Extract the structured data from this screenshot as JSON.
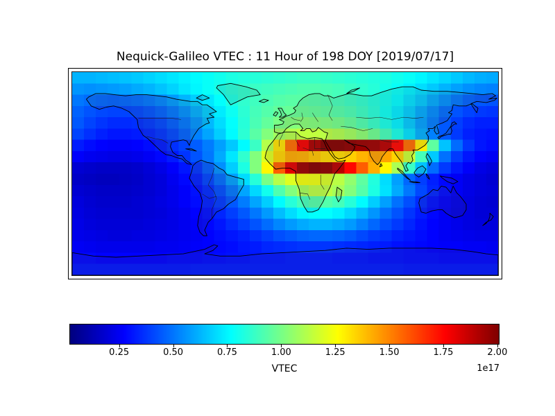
{
  "title": "Nequick-Galileo VTEC : 11 Hour of 198 DOY [2019/07/17]",
  "chart_data": {
    "type": "heatmap",
    "title": "Nequick-Galileo VTEC : 11 Hour of 198 DOY [2019/07/17]",
    "model": "Nequick-Galileo",
    "quantity": "VTEC",
    "hour": 11,
    "doy": 198,
    "date": "2019/07/17",
    "projection": "equirectangular-world-map",
    "lon_range": [
      -180,
      180
    ],
    "lat_range": [
      -90,
      90
    ],
    "grid": {
      "lon_cells": 36,
      "lat_cells": 18,
      "row_order": "north-to-south",
      "units": "1e17 el/m^2"
    },
    "colormap": "jet",
    "colorbar": {
      "orientation": "horizontal",
      "label": "VTEC",
      "offset_text": "1e17",
      "vmin": 0.02,
      "vmax": 2.01,
      "ticks": [
        0.25,
        0.5,
        0.75,
        1.0,
        1.25,
        1.5,
        1.75,
        2.0
      ],
      "tick_labels": [
        "0.25",
        "0.50",
        "0.75",
        "1.00",
        "1.25",
        "1.50",
        "1.75",
        "2.00"
      ]
    },
    "values_1e17": [
      [
        0.62,
        0.62,
        0.63,
        0.64,
        0.65,
        0.66,
        0.68,
        0.7,
        0.72,
        0.74,
        0.76,
        0.78,
        0.8,
        0.82,
        0.83,
        0.84,
        0.85,
        0.86,
        0.87,
        0.88,
        0.88,
        0.87,
        0.86,
        0.85,
        0.84,
        0.83,
        0.82,
        0.8,
        0.78,
        0.75,
        0.72,
        0.69,
        0.66,
        0.63,
        0.61,
        0.6
      ],
      [
        0.56,
        0.55,
        0.56,
        0.57,
        0.58,
        0.6,
        0.62,
        0.65,
        0.68,
        0.72,
        0.75,
        0.78,
        0.81,
        0.84,
        0.86,
        0.88,
        0.89,
        0.9,
        0.91,
        0.92,
        0.92,
        0.91,
        0.9,
        0.88,
        0.86,
        0.84,
        0.81,
        0.78,
        0.74,
        0.7,
        0.66,
        0.62,
        0.58,
        0.55,
        0.53,
        0.52
      ],
      [
        0.5,
        0.48,
        0.47,
        0.46,
        0.47,
        0.48,
        0.5,
        0.53,
        0.57,
        0.62,
        0.67,
        0.72,
        0.77,
        0.82,
        0.86,
        0.89,
        0.91,
        0.93,
        0.94,
        0.94,
        0.93,
        0.92,
        0.9,
        0.88,
        0.86,
        0.83,
        0.8,
        0.76,
        0.71,
        0.66,
        0.6,
        0.55,
        0.5,
        0.46,
        0.44,
        0.43
      ],
      [
        0.46,
        0.43,
        0.41,
        0.4,
        0.4,
        0.41,
        0.43,
        0.46,
        0.5,
        0.55,
        0.61,
        0.67,
        0.73,
        0.79,
        0.85,
        0.9,
        0.93,
        0.96,
        0.97,
        0.97,
        0.96,
        0.95,
        0.93,
        0.91,
        0.88,
        0.84,
        0.79,
        0.73,
        0.67,
        0.6,
        0.54,
        0.48,
        0.43,
        0.4,
        0.38,
        0.37
      ],
      [
        0.44,
        0.4,
        0.37,
        0.35,
        0.35,
        0.36,
        0.38,
        0.41,
        0.45,
        0.5,
        0.56,
        0.63,
        0.7,
        0.77,
        0.84,
        0.91,
        0.96,
        1.0,
        1.02,
        1.03,
        1.02,
        1.01,
        0.99,
        0.96,
        0.92,
        0.87,
        0.81,
        0.74,
        0.66,
        0.58,
        0.51,
        0.44,
        0.39,
        0.35,
        0.33,
        0.33
      ],
      [
        0.4,
        0.36,
        0.33,
        0.31,
        0.31,
        0.32,
        0.34,
        0.37,
        0.41,
        0.46,
        0.52,
        0.59,
        0.67,
        0.76,
        0.85,
        0.94,
        1.02,
        1.08,
        1.12,
        1.14,
        1.14,
        1.13,
        1.11,
        1.08,
        1.04,
        0.98,
        0.9,
        0.81,
        0.71,
        0.61,
        0.52,
        0.44,
        0.38,
        0.33,
        0.31,
        0.3
      ],
      [
        0.32,
        0.29,
        0.27,
        0.26,
        0.26,
        0.27,
        0.29,
        0.32,
        0.36,
        0.4,
        0.45,
        0.51,
        0.58,
        0.66,
        0.76,
        0.88,
        1.12,
        1.32,
        1.55,
        1.78,
        1.93,
        2.0,
        2.0,
        1.98,
        1.96,
        1.95,
        1.9,
        1.75,
        1.55,
        1.3,
        0.95,
        0.65,
        0.48,
        0.37,
        0.31,
        0.29
      ],
      [
        0.26,
        0.24,
        0.23,
        0.22,
        0.22,
        0.23,
        0.25,
        0.28,
        0.32,
        0.37,
        0.43,
        0.5,
        0.6,
        0.72,
        0.86,
        1.02,
        1.2,
        1.35,
        1.43,
        1.42,
        1.38,
        1.34,
        1.33,
        1.36,
        1.41,
        1.45,
        1.44,
        1.35,
        1.16,
        0.9,
        0.66,
        0.49,
        0.38,
        0.31,
        0.27,
        0.25
      ],
      [
        0.18,
        0.17,
        0.16,
        0.16,
        0.16,
        0.17,
        0.19,
        0.22,
        0.26,
        0.31,
        0.37,
        0.45,
        0.55,
        0.67,
        0.82,
        1.02,
        1.28,
        1.58,
        1.82,
        1.96,
        2.0,
        1.98,
        1.9,
        1.75,
        1.58,
        1.42,
        1.28,
        1.1,
        0.88,
        0.65,
        0.48,
        0.38,
        0.31,
        0.26,
        0.22,
        0.2
      ],
      [
        0.16,
        0.15,
        0.14,
        0.14,
        0.15,
        0.16,
        0.18,
        0.2,
        0.24,
        0.28,
        0.33,
        0.4,
        0.48,
        0.58,
        0.7,
        0.84,
        1.0,
        1.12,
        1.2,
        1.24,
        1.23,
        1.19,
        1.13,
        1.05,
        0.95,
        0.83,
        0.7,
        0.58,
        0.47,
        0.39,
        0.33,
        0.28,
        0.25,
        0.22,
        0.2,
        0.18
      ],
      [
        0.18,
        0.17,
        0.16,
        0.16,
        0.16,
        0.17,
        0.18,
        0.2,
        0.23,
        0.26,
        0.3,
        0.35,
        0.42,
        0.5,
        0.59,
        0.69,
        0.8,
        0.92,
        1.02,
        1.09,
        1.13,
        1.13,
        1.09,
        1.02,
        0.93,
        0.82,
        0.71,
        0.6,
        0.5,
        0.41,
        0.34,
        0.29,
        0.25,
        0.22,
        0.2,
        0.19
      ],
      [
        0.2,
        0.18,
        0.17,
        0.17,
        0.17,
        0.18,
        0.19,
        0.21,
        0.23,
        0.26,
        0.29,
        0.33,
        0.38,
        0.44,
        0.51,
        0.59,
        0.67,
        0.76,
        0.84,
        0.9,
        0.93,
        0.93,
        0.9,
        0.84,
        0.76,
        0.67,
        0.58,
        0.49,
        0.42,
        0.35,
        0.3,
        0.26,
        0.23,
        0.21,
        0.19,
        0.18
      ],
      [
        0.21,
        0.19,
        0.18,
        0.18,
        0.18,
        0.18,
        0.19,
        0.2,
        0.22,
        0.24,
        0.27,
        0.3,
        0.34,
        0.39,
        0.44,
        0.5,
        0.57,
        0.64,
        0.7,
        0.75,
        0.77,
        0.77,
        0.74,
        0.69,
        0.63,
        0.56,
        0.49,
        0.43,
        0.37,
        0.32,
        0.28,
        0.25,
        0.22,
        0.21,
        0.19,
        0.19
      ],
      [
        0.22,
        0.2,
        0.19,
        0.19,
        0.19,
        0.19,
        0.2,
        0.21,
        0.22,
        0.24,
        0.26,
        0.28,
        0.31,
        0.35,
        0.39,
        0.43,
        0.48,
        0.53,
        0.57,
        0.6,
        0.62,
        0.62,
        0.6,
        0.57,
        0.52,
        0.47,
        0.42,
        0.38,
        0.34,
        0.3,
        0.27,
        0.25,
        0.23,
        0.21,
        0.2,
        0.2
      ],
      [
        0.23,
        0.22,
        0.21,
        0.2,
        0.2,
        0.21,
        0.21,
        0.22,
        0.23,
        0.24,
        0.25,
        0.27,
        0.29,
        0.31,
        0.33,
        0.36,
        0.39,
        0.42,
        0.44,
        0.46,
        0.47,
        0.47,
        0.46,
        0.44,
        0.41,
        0.38,
        0.36,
        0.33,
        0.31,
        0.29,
        0.27,
        0.25,
        0.24,
        0.23,
        0.22,
        0.22
      ],
      [
        0.25,
        0.24,
        0.23,
        0.23,
        0.23,
        0.23,
        0.23,
        0.24,
        0.24,
        0.25,
        0.26,
        0.27,
        0.28,
        0.29,
        0.31,
        0.32,
        0.34,
        0.35,
        0.36,
        0.37,
        0.37,
        0.37,
        0.36,
        0.35,
        0.34,
        0.33,
        0.32,
        0.3,
        0.29,
        0.28,
        0.27,
        0.26,
        0.26,
        0.25,
        0.25,
        0.24
      ],
      [
        0.28,
        0.28,
        0.27,
        0.27,
        0.27,
        0.27,
        0.27,
        0.27,
        0.28,
        0.28,
        0.28,
        0.29,
        0.29,
        0.3,
        0.3,
        0.31,
        0.31,
        0.31,
        0.32,
        0.32,
        0.32,
        0.32,
        0.31,
        0.31,
        0.31,
        0.3,
        0.3,
        0.3,
        0.29,
        0.29,
        0.29,
        0.28,
        0.28,
        0.28,
        0.28,
        0.28
      ],
      [
        0.31,
        0.31,
        0.31,
        0.31,
        0.31,
        0.31,
        0.31,
        0.31,
        0.31,
        0.31,
        0.32,
        0.32,
        0.32,
        0.32,
        0.32,
        0.32,
        0.32,
        0.32,
        0.32,
        0.32,
        0.32,
        0.32,
        0.32,
        0.32,
        0.32,
        0.32,
        0.32,
        0.32,
        0.31,
        0.31,
        0.31,
        0.31,
        0.31,
        0.31,
        0.31,
        0.31
      ]
    ]
  }
}
